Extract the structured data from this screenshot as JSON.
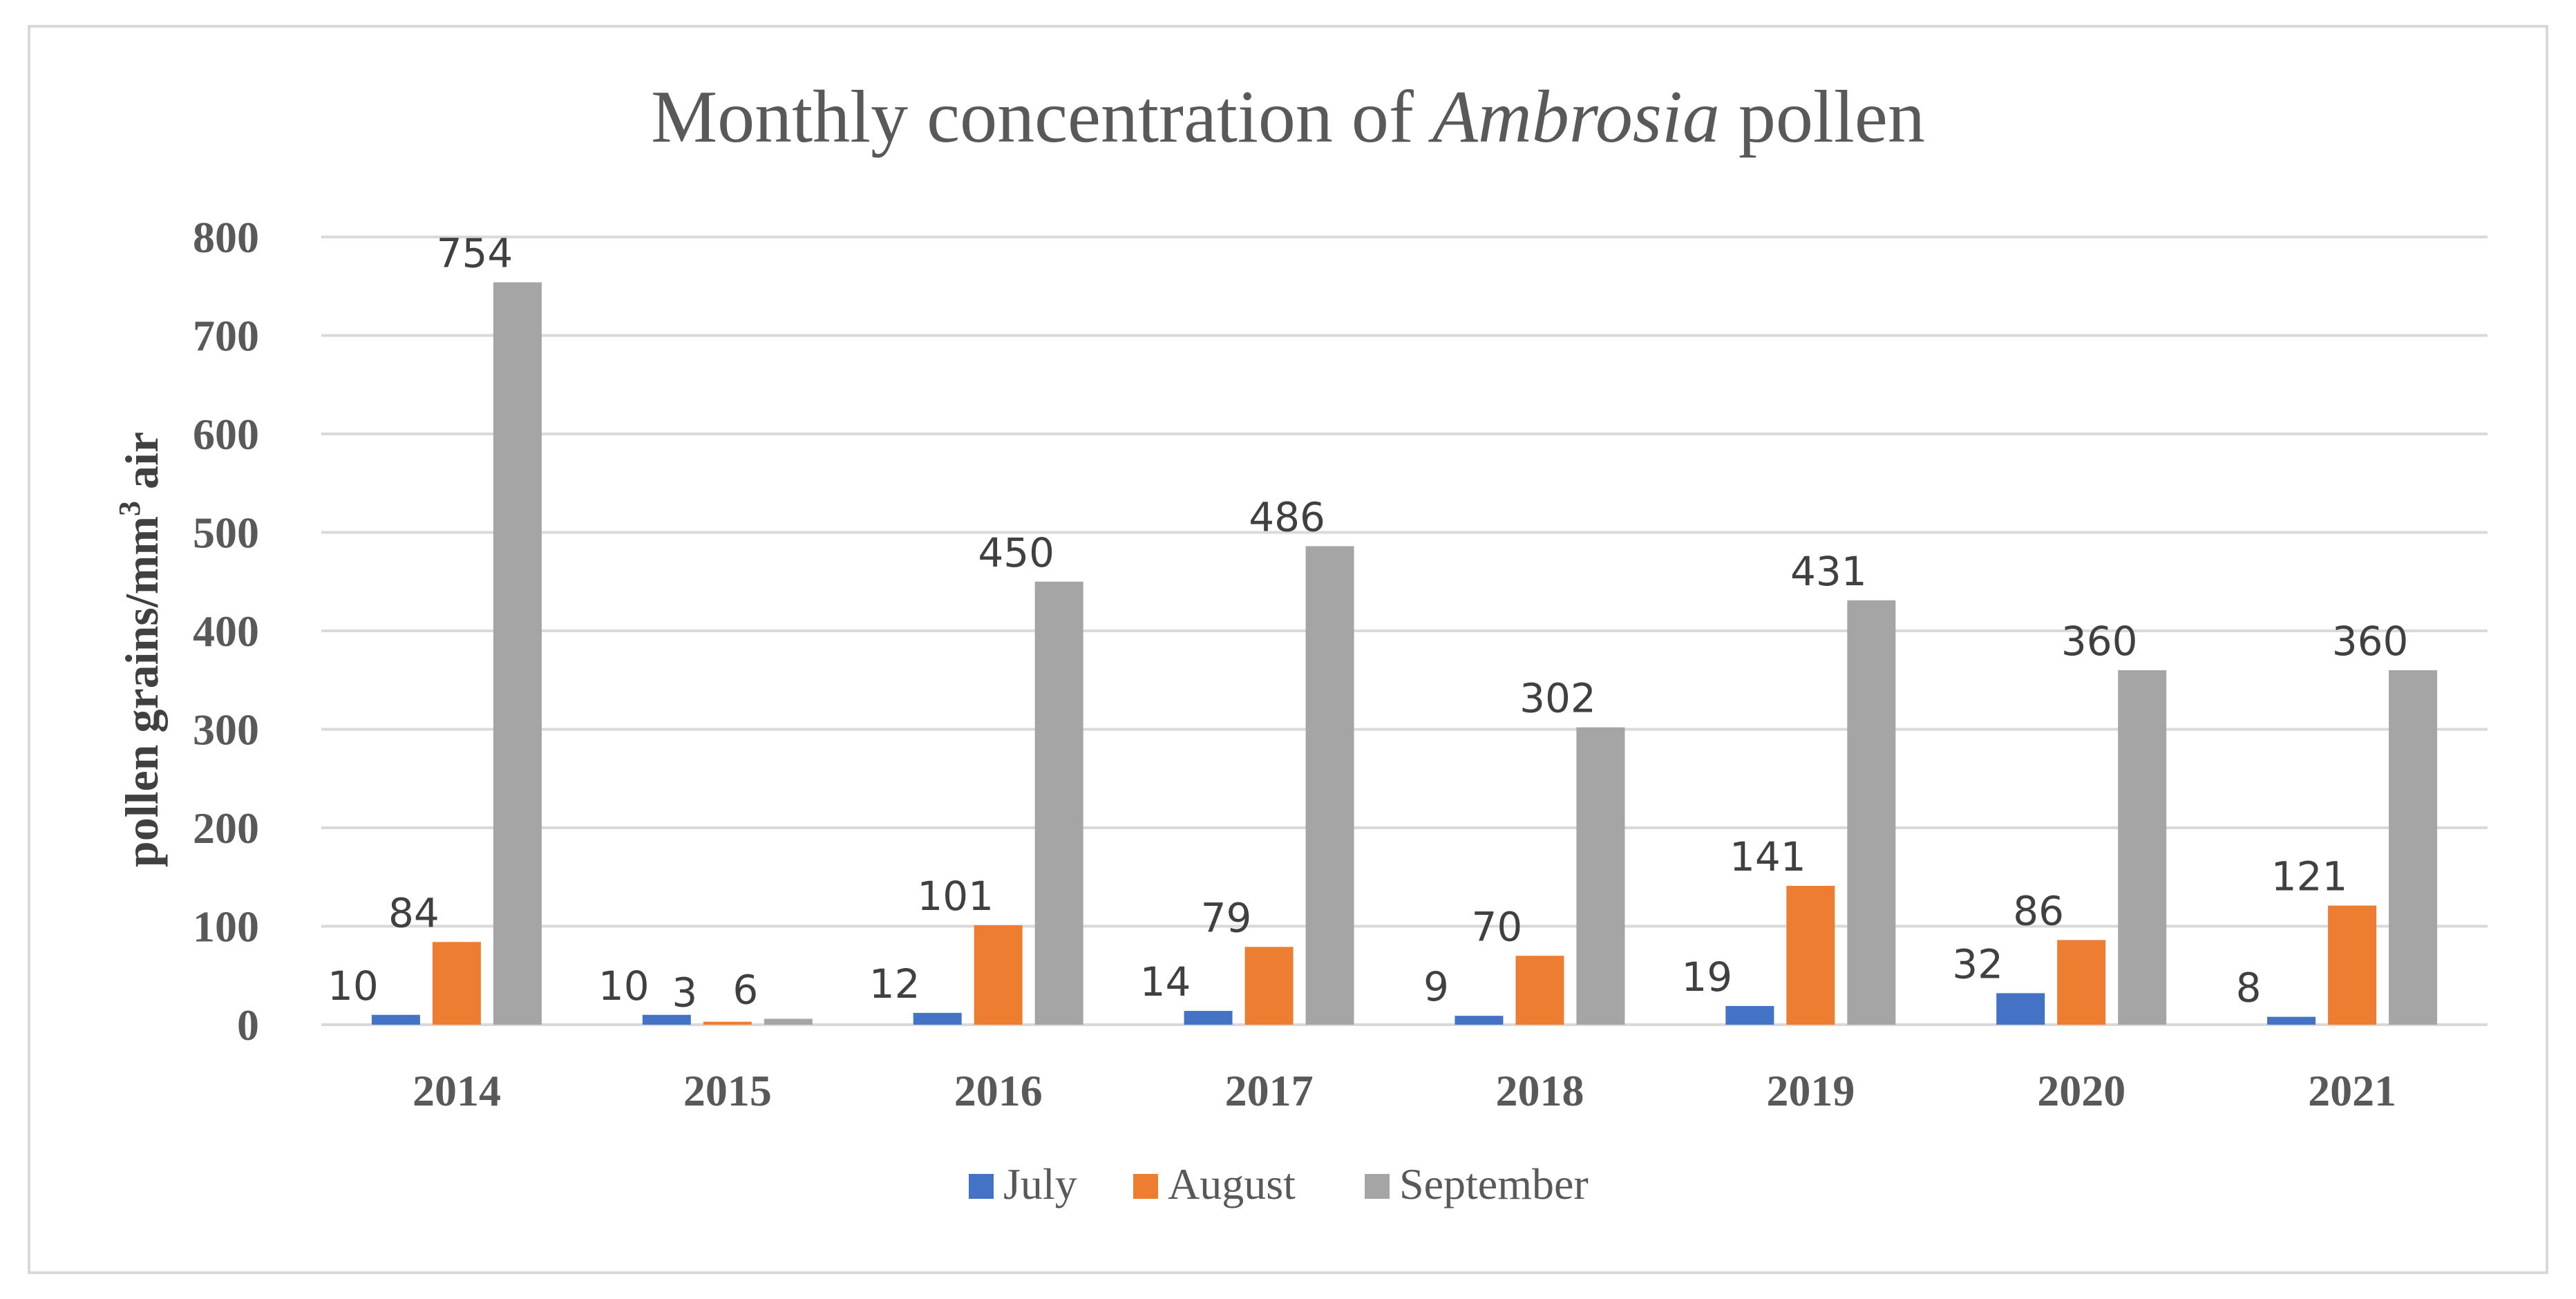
{
  "colors": {
    "July": "#4472c4",
    "August": "#ed7d31",
    "September": "#a5a5a5",
    "grid": "#d9d9d9"
  },
  "chart_data": {
    "type": "bar",
    "title_prefix": "Monthly concentration of ",
    "title_italic": "Ambrosia",
    "title_suffix": " pollen",
    "ylabel_main": "pollen grains/mm",
    "ylabel_sup": "3",
    "ylabel_end": " air",
    "xlabel": "",
    "ylim": [
      0,
      800
    ],
    "yticks": [
      0,
      100,
      200,
      300,
      400,
      500,
      600,
      700,
      800
    ],
    "categories": [
      "2014",
      "2015",
      "2016",
      "2017",
      "2018",
      "2019",
      "2020",
      "2021"
    ],
    "series": [
      {
        "name": "July",
        "values": [
          10,
          10,
          12,
          14,
          9,
          19,
          32,
          8
        ]
      },
      {
        "name": "August",
        "values": [
          84,
          3,
          101,
          79,
          70,
          141,
          86,
          121
        ]
      },
      {
        "name": "September",
        "values": [
          754,
          6,
          450,
          486,
          302,
          431,
          360,
          360
        ]
      }
    ],
    "legend_position": "bottom"
  }
}
